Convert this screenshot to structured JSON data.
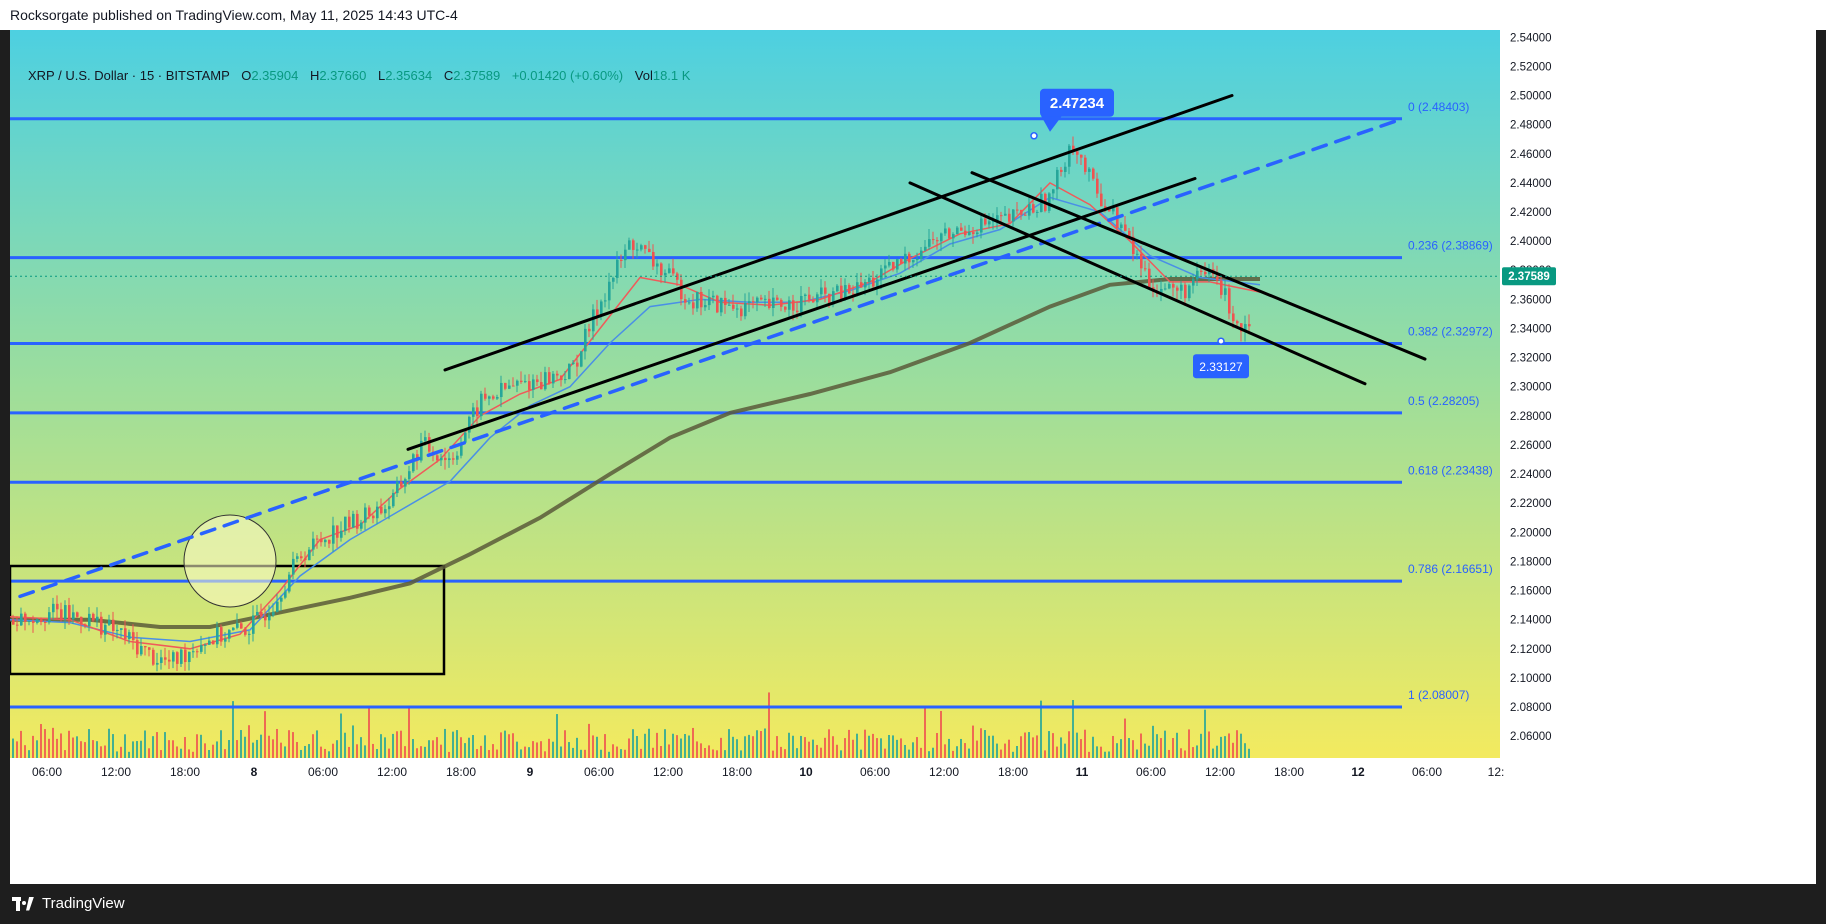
{
  "header": {
    "publish_text": "Rocksorgate published on TradingView.com, May 11, 2025 14:43 UTC-4"
  },
  "footer": {
    "brand": "TradingView"
  },
  "legend": {
    "symbol": "XRP / U.S. Dollar · 15 · BITSTAMP",
    "o_label": "O",
    "o_value": "2.35904",
    "h_label": "H",
    "h_value": "2.37660",
    "l_label": "L",
    "l_value": "2.35634",
    "c_label": "C",
    "c_value": "2.37589",
    "change": "+0.01420 (+0.60%)",
    "vol_label": "Vol",
    "vol_value": "18.1 K"
  },
  "colors": {
    "bull": "#26a69a",
    "bear": "#ef5350",
    "fib_line": "#2962ff",
    "price_badge": "#089981",
    "ema_fast": "#f05a5a",
    "ema_mid": "#4a8fe6",
    "ema_slow": "#5a5a3a"
  },
  "chart_data": {
    "type": "candlestick",
    "symbol": "XRP / U.S. Dollar",
    "interval": "15",
    "exchange": "BITSTAMP",
    "last_price": "2.37589",
    "ylim": [
      2.045,
      2.545
    ],
    "y_ticks": [
      "2.54000",
      "2.52000",
      "2.50000",
      "2.48000",
      "2.46000",
      "2.44000",
      "2.42000",
      "2.40000",
      "2.38000",
      "2.36000",
      "2.34000",
      "2.32000",
      "2.30000",
      "2.28000",
      "2.26000",
      "2.24000",
      "2.22000",
      "2.20000",
      "2.18000",
      "2.16000",
      "2.14000",
      "2.12000",
      "2.10000",
      "2.08000",
      "2.06000"
    ],
    "x_ticks": [
      "06:00",
      "12:00",
      "18:00",
      "8",
      "06:00",
      "12:00",
      "18:00",
      "9",
      "06:00",
      "12:00",
      "18:00",
      "10",
      "06:00",
      "12:00",
      "18:00",
      "11",
      "06:00",
      "12:00",
      "18:00",
      "12",
      "06:00",
      "12:"
    ],
    "x_tick_bold": [
      false,
      false,
      false,
      true,
      false,
      false,
      false,
      true,
      false,
      false,
      false,
      true,
      false,
      false,
      false,
      true,
      false,
      false,
      false,
      true,
      false,
      false
    ],
    "fib_levels": [
      {
        "label": "0 (2.48403)",
        "value": 2.48403
      },
      {
        "label": "0.236 (2.38869)",
        "value": 2.38869
      },
      {
        "label": "0.382 (2.32972)",
        "value": 2.32972
      },
      {
        "label": "0.5 (2.28205)",
        "value": 2.28205
      },
      {
        "label": "0.618 (2.23438)",
        "value": 2.23438
      },
      {
        "label": "0.786 (2.16651)",
        "value": 2.16651
      },
      {
        "label": "1 (2.08007)",
        "value": 2.08007
      }
    ],
    "annotations": [
      {
        "text": "2.47234",
        "value": 2.47234
      },
      {
        "text": "2.33127",
        "value": 2.33127
      }
    ],
    "price_path": [
      [
        0,
        2.14
      ],
      [
        40,
        2.145
      ],
      [
        80,
        2.14
      ],
      [
        110,
        2.13
      ],
      [
        140,
        2.115
      ],
      [
        160,
        2.11
      ],
      [
        190,
        2.125
      ],
      [
        215,
        2.13
      ],
      [
        240,
        2.135
      ],
      [
        260,
        2.15
      ],
      [
        290,
        2.185
      ],
      [
        320,
        2.2
      ],
      [
        350,
        2.21
      ],
      [
        380,
        2.22
      ],
      [
        410,
        2.26
      ],
      [
        440,
        2.25
      ],
      [
        470,
        2.29
      ],
      [
        500,
        2.3
      ],
      [
        530,
        2.305
      ],
      [
        560,
        2.31
      ],
      [
        590,
        2.36
      ],
      [
        620,
        2.4
      ],
      [
        650,
        2.38
      ],
      [
        680,
        2.36
      ],
      [
        720,
        2.355
      ],
      [
        760,
        2.355
      ],
      [
        800,
        2.36
      ],
      [
        840,
        2.365
      ],
      [
        880,
        2.38
      ],
      [
        920,
        2.4
      ],
      [
        960,
        2.41
      ],
      [
        1000,
        2.415
      ],
      [
        1040,
        2.43
      ],
      [
        1060,
        2.47
      ],
      [
        1080,
        2.44
      ],
      [
        1110,
        2.41
      ],
      [
        1140,
        2.37
      ],
      [
        1170,
        2.365
      ],
      [
        1200,
        2.38
      ],
      [
        1230,
        2.34
      ],
      [
        1260,
        2.37
      ]
    ],
    "ema_fast": [
      [
        0,
        2.142
      ],
      [
        60,
        2.14
      ],
      [
        120,
        2.125
      ],
      [
        180,
        2.12
      ],
      [
        230,
        2.13
      ],
      [
        270,
        2.16
      ],
      [
        310,
        2.195
      ],
      [
        350,
        2.205
      ],
      [
        390,
        2.23
      ],
      [
        430,
        2.25
      ],
      [
        470,
        2.28
      ],
      [
        510,
        2.295
      ],
      [
        550,
        2.305
      ],
      [
        590,
        2.34
      ],
      [
        630,
        2.375
      ],
      [
        670,
        2.37
      ],
      [
        710,
        2.358
      ],
      [
        760,
        2.356
      ],
      [
        810,
        2.36
      ],
      [
        860,
        2.372
      ],
      [
        900,
        2.388
      ],
      [
        950,
        2.405
      ],
      [
        1000,
        2.412
      ],
      [
        1040,
        2.44
      ],
      [
        1080,
        2.425
      ],
      [
        1120,
        2.4
      ],
      [
        1160,
        2.372
      ],
      [
        1200,
        2.372
      ],
      [
        1250,
        2.365
      ]
    ],
    "ema_mid": [
      [
        0,
        2.14
      ],
      [
        60,
        2.138
      ],
      [
        120,
        2.128
      ],
      [
        180,
        2.125
      ],
      [
        240,
        2.133
      ],
      [
        290,
        2.17
      ],
      [
        340,
        2.195
      ],
      [
        390,
        2.215
      ],
      [
        440,
        2.235
      ],
      [
        480,
        2.265
      ],
      [
        520,
        2.287
      ],
      [
        560,
        2.3
      ],
      [
        600,
        2.33
      ],
      [
        640,
        2.355
      ],
      [
        690,
        2.36
      ],
      [
        740,
        2.358
      ],
      [
        790,
        2.358
      ],
      [
        840,
        2.366
      ],
      [
        890,
        2.378
      ],
      [
        940,
        2.398
      ],
      [
        990,
        2.408
      ],
      [
        1040,
        2.43
      ],
      [
        1090,
        2.42
      ],
      [
        1140,
        2.39
      ],
      [
        1190,
        2.375
      ],
      [
        1250,
        2.37
      ]
    ],
    "ema_slow": [
      [
        0,
        2.14
      ],
      [
        80,
        2.14
      ],
      [
        150,
        2.135
      ],
      [
        200,
        2.135
      ],
      [
        270,
        2.145
      ],
      [
        340,
        2.155
      ],
      [
        400,
        2.165
      ],
      [
        460,
        2.185
      ],
      [
        530,
        2.21
      ],
      [
        600,
        2.24
      ],
      [
        660,
        2.265
      ],
      [
        720,
        2.282
      ],
      [
        800,
        2.295
      ],
      [
        880,
        2.31
      ],
      [
        960,
        2.33
      ],
      [
        1040,
        2.355
      ],
      [
        1100,
        2.37
      ],
      [
        1160,
        2.374
      ],
      [
        1250,
        2.374
      ]
    ],
    "trendlines": [
      {
        "id": "upper-channel",
        "style": "solid",
        "points": [
          [
            2.3115,
            435
          ],
          [
            2.5,
            1222
          ]
        ]
      },
      {
        "id": "lower-channel",
        "style": "solid",
        "points": [
          [
            2.257,
            398
          ],
          [
            2.443,
            1185
          ]
        ]
      },
      {
        "id": "dashed-support",
        "style": "dashed",
        "points": [
          [
            2.156,
            10
          ],
          [
            2.483,
            1388
          ]
        ]
      },
      {
        "id": "down-upper",
        "style": "solid",
        "points": [
          [
            2.447,
            962
          ],
          [
            2.319,
            1415
          ]
        ]
      },
      {
        "id": "down-lower",
        "style": "solid",
        "points": [
          [
            2.44,
            900
          ],
          [
            2.302,
            1355
          ]
        ]
      }
    ]
  }
}
